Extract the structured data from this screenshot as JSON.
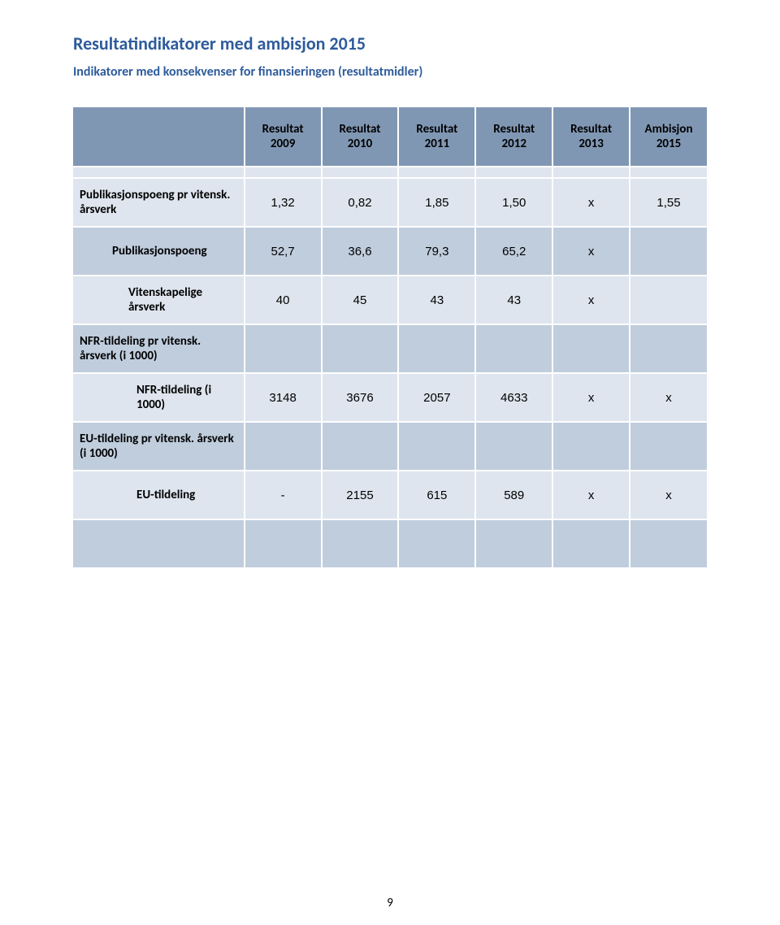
{
  "page": {
    "title": "Resultatindikatorer med ambisjon 2015",
    "subtitle": "Indikatorer med konsekvenser for finansieringen (resultatmidler)",
    "page_number": "9"
  },
  "colors": {
    "header_bg": "#8097b4",
    "band_light": "#dee5ee",
    "band_dark": "#c0cddd",
    "title_color": "#2d5b9b",
    "border_color": "#ffffff"
  },
  "table": {
    "columns": [
      {
        "label": "",
        "year": ""
      },
      {
        "label": "Resultat",
        "year": "2009"
      },
      {
        "label": "Resultat",
        "year": "2010"
      },
      {
        "label": "Resultat",
        "year": "2011"
      },
      {
        "label": "Resultat",
        "year": "2012"
      },
      {
        "label": "Resultat",
        "year": "2013"
      },
      {
        "label": "Ambisjon",
        "year": "2015"
      }
    ],
    "rows": [
      {
        "label": "Publikasjonspoeng pr vitensk. årsverk",
        "vals": [
          "1,32",
          "0,82",
          "1,85",
          "1,50",
          "x",
          "1,55"
        ]
      },
      {
        "label": "Publikasjonspoeng",
        "vals": [
          "52,7",
          "36,6",
          "79,3",
          "65,2",
          "x",
          ""
        ]
      },
      {
        "label": "Vitenskapelige årsverk",
        "vals": [
          "40",
          "45",
          "43",
          "43",
          "x",
          ""
        ]
      },
      {
        "label": "NFR-tildeling pr vitensk. årsverk  (i 1000)",
        "vals": [
          "",
          "",
          "",
          "",
          "",
          ""
        ]
      },
      {
        "label": "NFR-tildeling (i 1000)",
        "vals": [
          "3148",
          "3676",
          "2057",
          "4633",
          "x",
          "x"
        ]
      },
      {
        "label": "EU-tildeling pr vitensk. årsverk   (i 1000)",
        "vals": [
          "",
          "",
          "",
          "",
          "",
          ""
        ]
      },
      {
        "label": "EU-tildeling",
        "vals": [
          "-",
          "2155",
          "615",
          "589",
          "x",
          "x"
        ]
      }
    ]
  }
}
